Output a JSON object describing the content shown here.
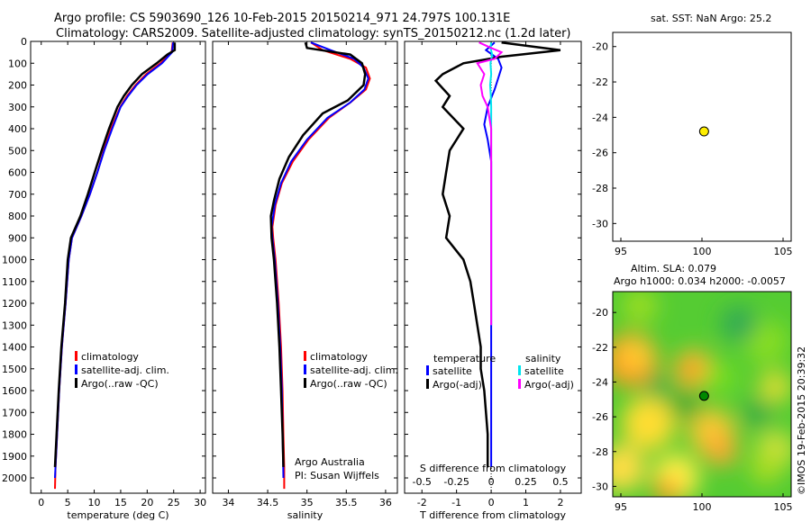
{
  "titles": {
    "line1": "Argo profile: CS 5903690_126 10-Feb-2015 20150214_971 24.797S 100.131E",
    "line2": "Climatology: CARS2009. Satellite-adjusted climatology: synTS_20150212.nc (1.2d later)"
  },
  "watermark": "©IMOS 19-Feb-2015 20:39:32",
  "colors": {
    "climatology": "#ff0000",
    "satellite": "#0000ff",
    "argo": "#000000",
    "sal_sat": "#00e5ee",
    "sal_argo": "#ff00ff"
  },
  "chart_data": [
    {
      "type": "line",
      "id": "temperature",
      "xlabel": "temperature (deg C)",
      "xlim": [
        -2,
        31
      ],
      "xticks": [
        0,
        5,
        10,
        15,
        20,
        25,
        30
      ],
      "ylim": [
        2070,
        0
      ],
      "yticks": [
        0,
        100,
        200,
        300,
        400,
        500,
        600,
        700,
        800,
        900,
        1000,
        1100,
        1200,
        1300,
        1400,
        1500,
        1600,
        1700,
        1800,
        1900,
        2000
      ],
      "legend": [
        "climatology",
        "satellite-adj. clim.",
        "Argo(..raw -QC)"
      ],
      "series": [
        {
          "name": "climatology",
          "color": "#ff0000",
          "points": [
            [
              24.8,
              5
            ],
            [
              24.6,
              50
            ],
            [
              22.5,
              100
            ],
            [
              19.8,
              150
            ],
            [
              17.8,
              200
            ],
            [
              16.2,
              250
            ],
            [
              14.9,
              300
            ],
            [
              13.2,
              400
            ],
            [
              11.8,
              500
            ],
            [
              10.6,
              600
            ],
            [
              9.2,
              700
            ],
            [
              7.6,
              800
            ],
            [
              5.8,
              900
            ],
            [
              5.2,
              1000
            ],
            [
              4.6,
              1200
            ],
            [
              3.9,
              1400
            ],
            [
              3.4,
              1600
            ],
            [
              3.0,
              1800
            ],
            [
              2.7,
              1950
            ],
            [
              2.6,
              2050
            ]
          ]
        },
        {
          "name": "satellite-adj. clim.",
          "color": "#0000ff",
          "points": [
            [
              24.9,
              5
            ],
            [
              24.7,
              50
            ],
            [
              22.8,
              100
            ],
            [
              20.1,
              150
            ],
            [
              18.0,
              200
            ],
            [
              16.4,
              250
            ],
            [
              15.0,
              300
            ],
            [
              13.4,
              400
            ],
            [
              11.9,
              500
            ],
            [
              10.6,
              600
            ],
            [
              9.2,
              700
            ],
            [
              7.6,
              800
            ],
            [
              5.8,
              900
            ],
            [
              5.2,
              1000
            ],
            [
              4.6,
              1200
            ],
            [
              3.9,
              1400
            ],
            [
              3.4,
              1600
            ],
            [
              3.0,
              1800
            ],
            [
              2.7,
              1950
            ],
            [
              2.6,
              2000
            ]
          ]
        },
        {
          "name": "Argo(..raw -QC)",
          "color": "#000000",
          "points": [
            [
              25.2,
              5
            ],
            [
              25.2,
              40
            ],
            [
              23.8,
              60
            ],
            [
              21.8,
              100
            ],
            [
              19.0,
              150
            ],
            [
              17.1,
              200
            ],
            [
              15.6,
              250
            ],
            [
              14.4,
              300
            ],
            [
              12.8,
              400
            ],
            [
              11.4,
              500
            ],
            [
              10.1,
              600
            ],
            [
              8.8,
              700
            ],
            [
              7.4,
              800
            ],
            [
              5.6,
              900
            ],
            [
              5.0,
              1000
            ],
            [
              4.5,
              1200
            ],
            [
              3.8,
              1400
            ],
            [
              3.3,
              1600
            ],
            [
              2.9,
              1800
            ],
            [
              2.6,
              1950
            ]
          ]
        }
      ]
    },
    {
      "type": "line",
      "id": "salinity",
      "xlabel": "salinity",
      "xlim": [
        33.8,
        36.15
      ],
      "xticks": [
        34,
        34.5,
        35,
        35.5,
        36
      ],
      "ylim": [
        2070,
        0
      ],
      "legend": [
        "climatology",
        "satellite-adj. clim.",
        "Argo(..raw -QC)"
      ],
      "annotation": {
        "line1": "Argo Australia",
        "line2": "PI: Susan Wijffels"
      },
      "series": [
        {
          "name": "climatology",
          "color": "#ff0000",
          "points": [
            [
              35.05,
              5
            ],
            [
              35.2,
              40
            ],
            [
              35.55,
              80
            ],
            [
              35.75,
              120
            ],
            [
              35.8,
              170
            ],
            [
              35.75,
              220
            ],
            [
              35.55,
              280
            ],
            [
              35.28,
              350
            ],
            [
              35.02,
              450
            ],
            [
              34.82,
              550
            ],
            [
              34.68,
              650
            ],
            [
              34.6,
              750
            ],
            [
              34.56,
              850
            ],
            [
              34.57,
              900
            ],
            [
              34.6,
              1000
            ],
            [
              34.64,
              1200
            ],
            [
              34.67,
              1400
            ],
            [
              34.69,
              1600
            ],
            [
              34.7,
              1800
            ],
            [
              34.71,
              1950
            ],
            [
              34.71,
              2050
            ]
          ]
        },
        {
          "name": "satellite-adj. clim.",
          "color": "#0000ff",
          "points": [
            [
              35.05,
              5
            ],
            [
              35.3,
              40
            ],
            [
              35.6,
              80
            ],
            [
              35.72,
              120
            ],
            [
              35.78,
              170
            ],
            [
              35.73,
              220
            ],
            [
              35.55,
              280
            ],
            [
              35.26,
              350
            ],
            [
              35.0,
              450
            ],
            [
              34.8,
              550
            ],
            [
              34.67,
              650
            ],
            [
              34.59,
              750
            ],
            [
              34.55,
              850
            ],
            [
              34.56,
              900
            ],
            [
              34.59,
              1000
            ],
            [
              34.63,
              1200
            ],
            [
              34.66,
              1400
            ],
            [
              34.68,
              1600
            ],
            [
              34.69,
              1800
            ],
            [
              34.7,
              2000
            ]
          ]
        },
        {
          "name": "Argo(..raw -QC)",
          "color": "#000000",
          "points": [
            [
              34.98,
              5
            ],
            [
              35.0,
              30
            ],
            [
              35.55,
              60
            ],
            [
              35.7,
              100
            ],
            [
              35.74,
              150
            ],
            [
              35.72,
              200
            ],
            [
              35.52,
              270
            ],
            [
              35.2,
              330
            ],
            [
              34.95,
              430
            ],
            [
              34.77,
              530
            ],
            [
              34.65,
              630
            ],
            [
              34.58,
              730
            ],
            [
              34.54,
              800
            ],
            [
              34.55,
              900
            ],
            [
              34.58,
              1000
            ],
            [
              34.62,
              1200
            ],
            [
              34.65,
              1400
            ],
            [
              34.67,
              1600
            ],
            [
              34.69,
              1800
            ],
            [
              34.7,
              1950
            ]
          ]
        }
      ]
    },
    {
      "type": "line",
      "id": "difference",
      "xlabel": "T difference from climatology",
      "xlabel_top": "S difference from climatology",
      "xlim": [
        -2.5,
        2.6
      ],
      "xticks": [
        -2,
        -1,
        0,
        1,
        2
      ],
      "xticks_s": [
        "-0.5",
        "-0.25",
        "0",
        "0.25",
        "0.5"
      ],
      "ylim": [
        2070,
        0
      ],
      "legend": {
        "temperature_title": "temperature",
        "salinity_title": "salinity",
        "t_sat": "satellite",
        "t_argo": "Argo(-adj)",
        "s_sat": "satellite",
        "s_argo": "Argo(-adj)"
      },
      "series": [
        {
          "name": "T satellite",
          "color": "#0000ff",
          "points": [
            [
              0.1,
              5
            ],
            [
              -0.15,
              40
            ],
            [
              0.2,
              80
            ],
            [
              0.3,
              120
            ],
            [
              0.2,
              170
            ],
            [
              0.1,
              220
            ],
            [
              -0.1,
              300
            ],
            [
              -0.2,
              380
            ],
            [
              -0.1,
              450
            ],
            [
              0,
              550
            ],
            [
              0,
              700
            ],
            [
              0,
              900
            ],
            [
              0,
              1100
            ],
            [
              0,
              1300
            ],
            [
              0,
              1500
            ],
            [
              0,
              1700
            ],
            [
              0,
              1900
            ],
            [
              0,
              1950
            ]
          ]
        },
        {
          "name": "T Argo(-adj)",
          "color": "#000000",
          "points": [
            [
              0.3,
              5
            ],
            [
              2.0,
              40
            ],
            [
              0.3,
              70
            ],
            [
              -0.8,
              100
            ],
            [
              -1.4,
              150
            ],
            [
              -1.6,
              180
            ],
            [
              -1.2,
              250
            ],
            [
              -1.4,
              300
            ],
            [
              -0.8,
              400
            ],
            [
              -1.2,
              500
            ],
            [
              -1.3,
              600
            ],
            [
              -1.4,
              700
            ],
            [
              -1.2,
              800
            ],
            [
              -1.3,
              900
            ],
            [
              -0.8,
              1000
            ],
            [
              -0.6,
              1100
            ],
            [
              -0.5,
              1200
            ],
            [
              -0.4,
              1300
            ],
            [
              -0.3,
              1400
            ],
            [
              -0.3,
              1500
            ],
            [
              -0.2,
              1600
            ],
            [
              -0.15,
              1700
            ],
            [
              -0.1,
              1800
            ],
            [
              -0.1,
              1950
            ]
          ]
        },
        {
          "name": "S satellite",
          "color": "#00e5ee",
          "points": [
            [
              0,
              5
            ],
            [
              -0.02,
              30
            ],
            [
              0.03,
              60
            ],
            [
              -0.02,
              100
            ],
            [
              0,
              150
            ],
            [
              -0.03,
              200
            ],
            [
              -0.01,
              250
            ],
            [
              0,
              300
            ],
            [
              0,
              400
            ],
            [
              0,
              600
            ],
            [
              0,
              900
            ],
            [
              0,
              1300
            ]
          ]
        },
        {
          "name": "S Argo(-adj)",
          "color": "#ff00ff",
          "points": [
            [
              -0.35,
              5
            ],
            [
              0.0,
              30
            ],
            [
              0.3,
              50
            ],
            [
              0.1,
              80
            ],
            [
              -0.4,
              100
            ],
            [
              -0.2,
              150
            ],
            [
              -0.3,
              200
            ],
            [
              -0.25,
              250
            ],
            [
              -0.1,
              300
            ],
            [
              0,
              400
            ],
            [
              0,
              600
            ],
            [
              0,
              900
            ],
            [
              0,
              1300
            ]
          ]
        }
      ]
    },
    {
      "type": "scatter",
      "id": "sst-map",
      "title": "sat. SST: NaN  Argo: 25.2",
      "xlim": [
        94.5,
        105.5
      ],
      "ylim": [
        -31,
        -19.2
      ],
      "xticks": [
        95,
        100,
        105
      ],
      "yticks": [
        -20,
        -22,
        -24,
        -26,
        -28,
        -30
      ],
      "points": [
        {
          "x": 100.131,
          "y": -24.797,
          "color": "#ffee00"
        }
      ]
    },
    {
      "type": "heatmap",
      "id": "sla-map",
      "title1": "Altim. SLA: 0.079",
      "title2": "Argo h1000: 0.034  h2000: -0.0057",
      "xlim": [
        94.5,
        105.5
      ],
      "ylim": [
        -30.6,
        -18.8
      ],
      "xticks": [
        95,
        100,
        105
      ],
      "yticks": [
        -20,
        -22,
        -24,
        -26,
        -28,
        -30
      ],
      "points": [
        {
          "x": 100.131,
          "y": -24.797,
          "color": "#008800"
        }
      ]
    }
  ]
}
